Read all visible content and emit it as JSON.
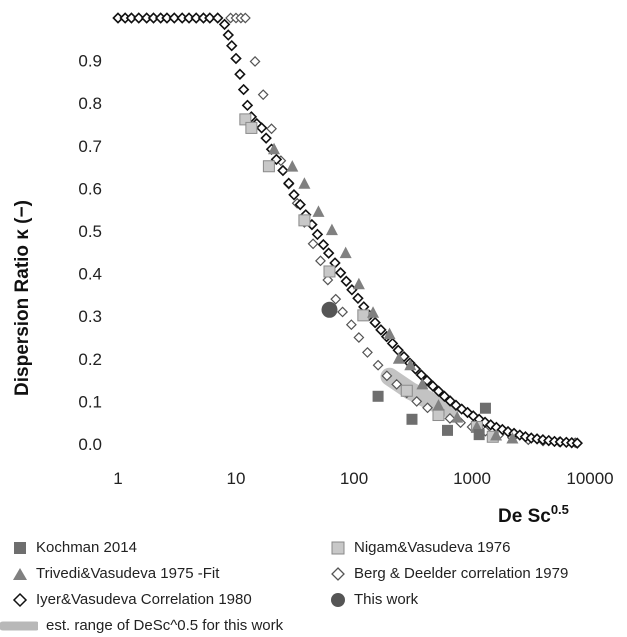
{
  "chart_data": {
    "type": "scatter",
    "xscale": "log",
    "xlim": [
      1,
      10000
    ],
    "ylim": [
      0,
      1.0
    ],
    "xlabel": "De Sc",
    "xlabel_superscript": "0.5",
    "ylabel": "Dispersion Ratio κ (−)",
    "x_ticks": [
      "1",
      "10",
      "100",
      "1000",
      "10000"
    ],
    "y_ticks": [
      "0.0",
      "0.1",
      "0.2",
      "0.3",
      "0.4",
      "0.5",
      "0.6",
      "0.7",
      "0.8",
      "0.9"
    ],
    "grid": false,
    "legend_position": "bottom",
    "series": [
      {
        "name": "Kochman 2014",
        "marker": "square",
        "color": "#6e6e6e",
        "points": [
          [
            160,
            0.112
          ],
          [
            310,
            0.058
          ],
          [
            620,
            0.032
          ],
          [
            1300,
            0.084
          ],
          [
            1150,
            0.022
          ]
        ]
      },
      {
        "name": "Nigam&Vasudeva 1976",
        "marker": "square",
        "color": "#c8c8c8",
        "points": [
          [
            12,
            0.762
          ],
          [
            13.5,
            0.742
          ],
          [
            19,
            0.652
          ],
          [
            38,
            0.525
          ],
          [
            62,
            0.405
          ],
          [
            120,
            0.302
          ],
          [
            280,
            0.125
          ],
          [
            520,
            0.068
          ],
          [
            1100,
            0.04
          ],
          [
            1500,
            0.017
          ]
        ]
      },
      {
        "name": "Trivedi&Vasudeva 1975 -Fit",
        "marker": "triangle",
        "color": "#808080",
        "points": [
          [
            21,
            0.692
          ],
          [
            30,
            0.651
          ],
          [
            38,
            0.611
          ],
          [
            50,
            0.545
          ],
          [
            65,
            0.502
          ],
          [
            85,
            0.448
          ],
          [
            110,
            0.375
          ],
          [
            145,
            0.308
          ],
          [
            200,
            0.258
          ],
          [
            240,
            0.2
          ],
          [
            300,
            0.185
          ],
          [
            380,
            0.14
          ],
          [
            520,
            0.09
          ],
          [
            750,
            0.062
          ],
          [
            1100,
            0.04
          ],
          [
            1600,
            0.02
          ],
          [
            2200,
            0.013
          ]
        ]
      },
      {
        "name": "Berg & Deelder correlation 1979",
        "marker": "diamond-open",
        "color": "#555555",
        "points": [
          [
            9,
            1.0
          ],
          [
            10,
            1.0
          ],
          [
            11,
            1.0
          ],
          [
            12,
            1.0
          ],
          [
            14.5,
            0.898
          ],
          [
            17,
            0.82
          ],
          [
            20,
            0.74
          ],
          [
            24,
            0.665
          ],
          [
            28,
            0.61
          ],
          [
            33,
            0.565
          ],
          [
            38,
            0.52
          ],
          [
            45,
            0.47
          ],
          [
            52,
            0.43
          ],
          [
            60,
            0.385
          ],
          [
            70,
            0.34
          ],
          [
            80,
            0.31
          ],
          [
            95,
            0.28
          ],
          [
            110,
            0.25
          ],
          [
            130,
            0.215
          ],
          [
            160,
            0.185
          ],
          [
            190,
            0.16
          ],
          [
            230,
            0.14
          ],
          [
            280,
            0.12
          ],
          [
            340,
            0.1
          ],
          [
            420,
            0.085
          ],
          [
            520,
            0.07
          ],
          [
            650,
            0.06
          ],
          [
            800,
            0.05
          ],
          [
            1000,
            0.04
          ],
          [
            1300,
            0.03
          ],
          [
            1700,
            0.022
          ],
          [
            2200,
            0.015
          ],
          [
            3000,
            0.01
          ],
          [
            4000,
            0.007
          ],
          [
            5500,
            0.005
          ],
          [
            7500,
            0.003
          ]
        ]
      },
      {
        "name": "Iyer&Vasudeva Correlation 1980",
        "marker": "diamond-open",
        "color": "#111111",
        "points": [
          [
            1,
            1.0
          ],
          [
            1.15,
            1.0
          ],
          [
            1.3,
            1.0
          ],
          [
            1.5,
            1.0
          ],
          [
            1.75,
            1.0
          ],
          [
            2,
            1.0
          ],
          [
            2.3,
            1.0
          ],
          [
            2.6,
            1.0
          ],
          [
            3,
            1.0
          ],
          [
            3.5,
            1.0
          ],
          [
            4,
            1.0
          ],
          [
            4.6,
            1.0
          ],
          [
            5.3,
            1.0
          ],
          [
            6,
            1.0
          ],
          [
            7,
            1.0
          ],
          [
            8,
            0.985
          ],
          [
            8.6,
            0.96
          ],
          [
            9.2,
            0.935
          ],
          [
            10,
            0.905
          ],
          [
            10.8,
            0.868
          ],
          [
            11.6,
            0.832
          ],
          [
            12.5,
            0.795
          ],
          [
            13.5,
            0.768
          ],
          [
            15,
            0.752
          ],
          [
            16.5,
            0.742
          ],
          [
            18,
            0.718
          ],
          [
            20,
            0.692
          ],
          [
            22,
            0.668
          ],
          [
            25,
            0.642
          ],
          [
            28,
            0.612
          ],
          [
            31,
            0.585
          ],
          [
            35,
            0.562
          ],
          [
            39,
            0.538
          ],
          [
            44,
            0.515
          ],
          [
            49,
            0.492
          ],
          [
            55,
            0.468
          ],
          [
            61,
            0.448
          ],
          [
            69,
            0.425
          ],
          [
            77,
            0.402
          ],
          [
            86,
            0.382
          ],
          [
            96,
            0.362
          ],
          [
            108,
            0.342
          ],
          [
            121,
            0.322
          ],
          [
            135,
            0.302
          ],
          [
            151,
            0.285
          ],
          [
            169,
            0.268
          ],
          [
            189,
            0.252
          ],
          [
            212,
            0.236
          ],
          [
            237,
            0.22
          ],
          [
            265,
            0.205
          ],
          [
            297,
            0.19
          ],
          [
            332,
            0.176
          ],
          [
            372,
            0.162
          ],
          [
            416,
            0.149
          ],
          [
            466,
            0.136
          ],
          [
            521,
            0.124
          ],
          [
            584,
            0.112
          ],
          [
            653,
            0.101
          ],
          [
            731,
            0.091
          ],
          [
            818,
            0.082
          ],
          [
            916,
            0.074
          ],
          [
            1025,
            0.066
          ],
          [
            1150,
            0.058
          ],
          [
            1290,
            0.051
          ],
          [
            1440,
            0.045
          ],
          [
            1610,
            0.039
          ],
          [
            1810,
            0.034
          ],
          [
            2020,
            0.029
          ],
          [
            2270,
            0.025
          ],
          [
            2540,
            0.021
          ],
          [
            2840,
            0.017
          ],
          [
            3180,
            0.014
          ],
          [
            3560,
            0.012
          ],
          [
            3990,
            0.01
          ],
          [
            4470,
            0.008
          ],
          [
            5000,
            0.006
          ],
          [
            5600,
            0.005
          ],
          [
            6300,
            0.004
          ],
          [
            7000,
            0.003
          ],
          [
            7800,
            0.002
          ]
        ]
      },
      {
        "name": "This work",
        "marker": "circle",
        "color": "#555555",
        "points": [
          [
            62,
            0.315
          ]
        ]
      }
    ],
    "range_band": {
      "name": "est. range of DeSc^0.5 for this work",
      "color": "#b8b8b8",
      "points": [
        [
          200,
          0.158
        ],
        [
          300,
          0.125
        ],
        [
          450,
          0.1
        ],
        [
          650,
          0.082
        ]
      ]
    }
  }
}
